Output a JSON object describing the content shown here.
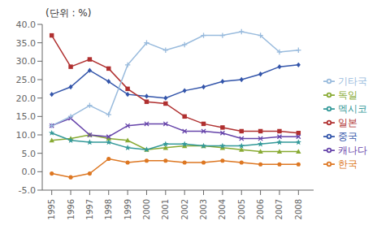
{
  "chart_data": {
    "type": "line",
    "title": "(단위 : %)",
    "x": [
      1995,
      1996,
      1997,
      1998,
      1999,
      2000,
      2001,
      2002,
      2003,
      2004,
      2005,
      2006,
      2007,
      2008
    ],
    "series": [
      {
        "name": "중국",
        "color": "#3355AA",
        "marker": "diamond",
        "values": [
          21.0,
          23.0,
          27.5,
          24.5,
          21.0,
          20.5,
          20.0,
          22.0,
          23.0,
          24.5,
          25.0,
          26.5,
          28.5,
          29.0
        ]
      },
      {
        "name": "일본",
        "color": "#B03030",
        "marker": "square",
        "values": [
          37.0,
          28.5,
          30.5,
          28.0,
          22.5,
          19.0,
          18.5,
          15.0,
          13.0,
          12.0,
          11.0,
          11.0,
          11.0,
          10.5
        ]
      },
      {
        "name": "독일",
        "color": "#88AA33",
        "marker": "triangle",
        "values": [
          8.5,
          9.0,
          10.0,
          9.0,
          8.5,
          6.0,
          6.5,
          7.0,
          7.0,
          6.5,
          6.0,
          5.5,
          5.5,
          5.5
        ]
      },
      {
        "name": "캐나다",
        "color": "#6644AA",
        "marker": "x",
        "values": [
          12.5,
          14.5,
          10.0,
          9.5,
          12.5,
          13.0,
          13.0,
          11.0,
          11.0,
          10.5,
          9.0,
          9.0,
          9.5,
          9.5
        ]
      },
      {
        "name": "멕시코",
        "color": "#339999",
        "marker": "star",
        "values": [
          10.5,
          8.5,
          8.0,
          8.0,
          6.5,
          6.0,
          7.5,
          7.5,
          7.0,
          7.0,
          7.0,
          7.5,
          8.0,
          8.0
        ]
      },
      {
        "name": "한국",
        "color": "#DD7722",
        "marker": "circle",
        "values": [
          -0.5,
          -1.5,
          -0.5,
          3.5,
          2.5,
          3.0,
          3.0,
          2.5,
          2.5,
          3.0,
          2.5,
          2.0,
          2.0,
          2.0
        ]
      },
      {
        "name": "기타국",
        "color": "#99BBDD",
        "marker": "plus",
        "values": [
          12.5,
          15.0,
          18.0,
          15.5,
          29.0,
          35.0,
          33.0,
          34.5,
          37.0,
          37.0,
          38.0,
          37.0,
          32.5,
          33.0
        ]
      }
    ],
    "xlim": [
      1994.5,
      2008.8
    ],
    "xticks": [
      1995,
      1996,
      1997,
      1998,
      1999,
      2000,
      2001,
      2002,
      2003,
      2004,
      2005,
      2006,
      2007,
      2008
    ],
    "ylim": [
      -5.0,
      40.0
    ],
    "yticks": [
      {
        "value": -5.0,
        "label": "-5.0"
      },
      {
        "value": 0.0,
        "label": "0.0"
      },
      {
        "value": 5.0,
        "label": "5.0"
      },
      {
        "value": 10.0,
        "label": "10.0"
      },
      {
        "value": 15.0,
        "label": "15.0"
      },
      {
        "value": 20.0,
        "label": "20.0"
      },
      {
        "value": 25.0,
        "label": "25.0"
      },
      {
        "value": 30.0,
        "label": "30.0"
      },
      {
        "value": 35.0,
        "label": "35.0"
      },
      {
        "value": 40.0,
        "label": "40.0"
      }
    ],
    "grid": false,
    "legend": "right"
  }
}
